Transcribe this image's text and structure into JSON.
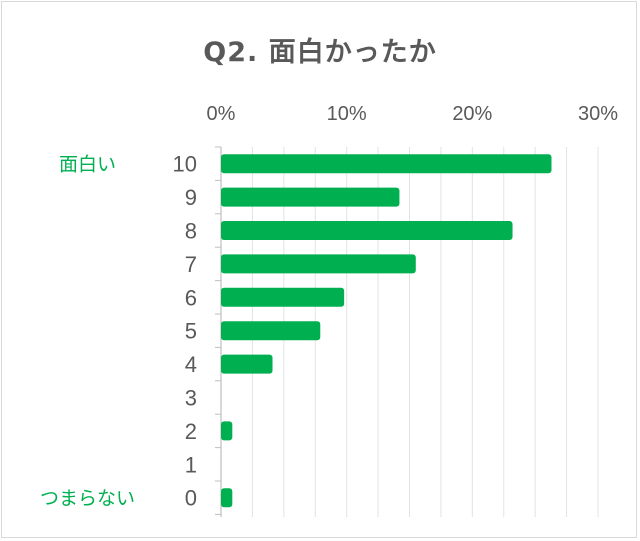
{
  "chart_data": {
    "type": "bar",
    "orientation": "horizontal",
    "title": "Q2. 面白かったか",
    "categories": [
      "10",
      "9",
      "8",
      "7",
      "6",
      "5",
      "4",
      "3",
      "2",
      "1",
      "0"
    ],
    "values": [
      26.3,
      14.2,
      23.2,
      15.5,
      9.8,
      7.9,
      4.1,
      0,
      0.9,
      0,
      0.9
    ],
    "value_unit": "%",
    "xlim": [
      0,
      30
    ],
    "x_ticks": [
      "0%",
      "10%",
      "20%",
      "30%"
    ],
    "x_axis_position": "top",
    "grid": true,
    "annotations": [
      {
        "category": "10",
        "text": "面白い"
      },
      {
        "category": "0",
        "text": "つまらない"
      }
    ],
    "bar_color": "#00b050",
    "text_color": "#595959",
    "annotation_color": "#00b050"
  }
}
